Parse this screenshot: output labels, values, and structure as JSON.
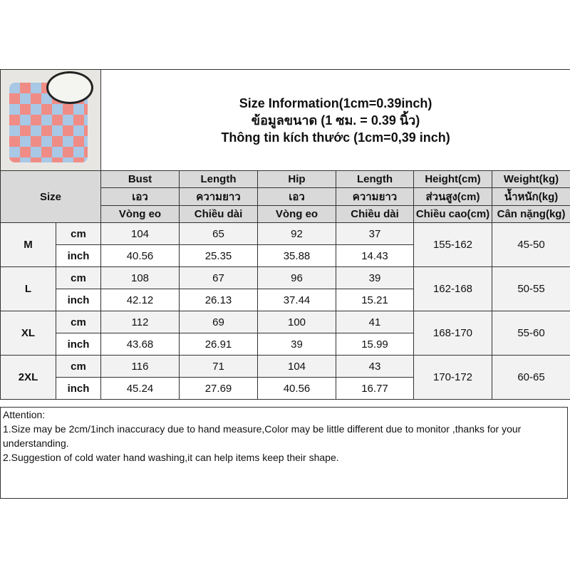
{
  "title_lines": [
    "Size Information(1cm=0.39inch)",
    "ข้อมูลขนาด (1 ซม. = 0.39 นิ้ว)",
    "Thông tin kích thước (1cm=0,39 inch)"
  ],
  "size_label": "Size",
  "columns": [
    {
      "en": "Bust",
      "th": "เอว",
      "vi": "Vòng eo"
    },
    {
      "en": "Length",
      "th": "ความยาว",
      "vi": "Chiều dài"
    },
    {
      "en": "Hip",
      "th": "เอว",
      "vi": "Vòng eo"
    },
    {
      "en": "Length",
      "th": "ความยาว",
      "vi": "Chiều dài"
    },
    {
      "en": "Height(cm)",
      "th": "ส่วนสูง(cm)",
      "vi": "Chiều cao(cm)"
    },
    {
      "en": "Weight(kg)",
      "th": "น้ำหนัก(kg)",
      "vi": "Cân nặng(kg)"
    }
  ],
  "units": {
    "cm": "cm",
    "inch": "inch"
  },
  "rows": [
    {
      "size": "M",
      "cm": [
        "104",
        "65",
        "92",
        "37"
      ],
      "inch": [
        "40.56",
        "25.35",
        "35.88",
        "14.43"
      ],
      "height": "155-162",
      "weight": "45-50"
    },
    {
      "size": "L",
      "cm": [
        "108",
        "67",
        "96",
        "39"
      ],
      "inch": [
        "42.12",
        "26.13",
        "37.44",
        "15.21"
      ],
      "height": "162-168",
      "weight": "50-55"
    },
    {
      "size": "XL",
      "cm": [
        "112",
        "69",
        "100",
        "41"
      ],
      "inch": [
        "43.68",
        "26.91",
        "39",
        "15.99"
      ],
      "height": "168-170",
      "weight": "55-60"
    },
    {
      "size": "2XL",
      "cm": [
        "116",
        "71",
        "104",
        "43"
      ],
      "inch": [
        "45.24",
        "27.69",
        "40.56",
        "16.77"
      ],
      "height": "170-172",
      "weight": "60-65"
    }
  ],
  "attention": [
    "Attention:",
    "1.Size may be 2cm/1inch inaccuracy due to hand measure,Color may be little different due to monitor ,thanks for your understanding.",
    "2.Suggestion of cold water hand washing,it can help items keep their shape."
  ],
  "colors": {
    "header_bg": "#d9d9d9",
    "cm_row_bg": "#f2f2f2",
    "border": "#333333"
  }
}
